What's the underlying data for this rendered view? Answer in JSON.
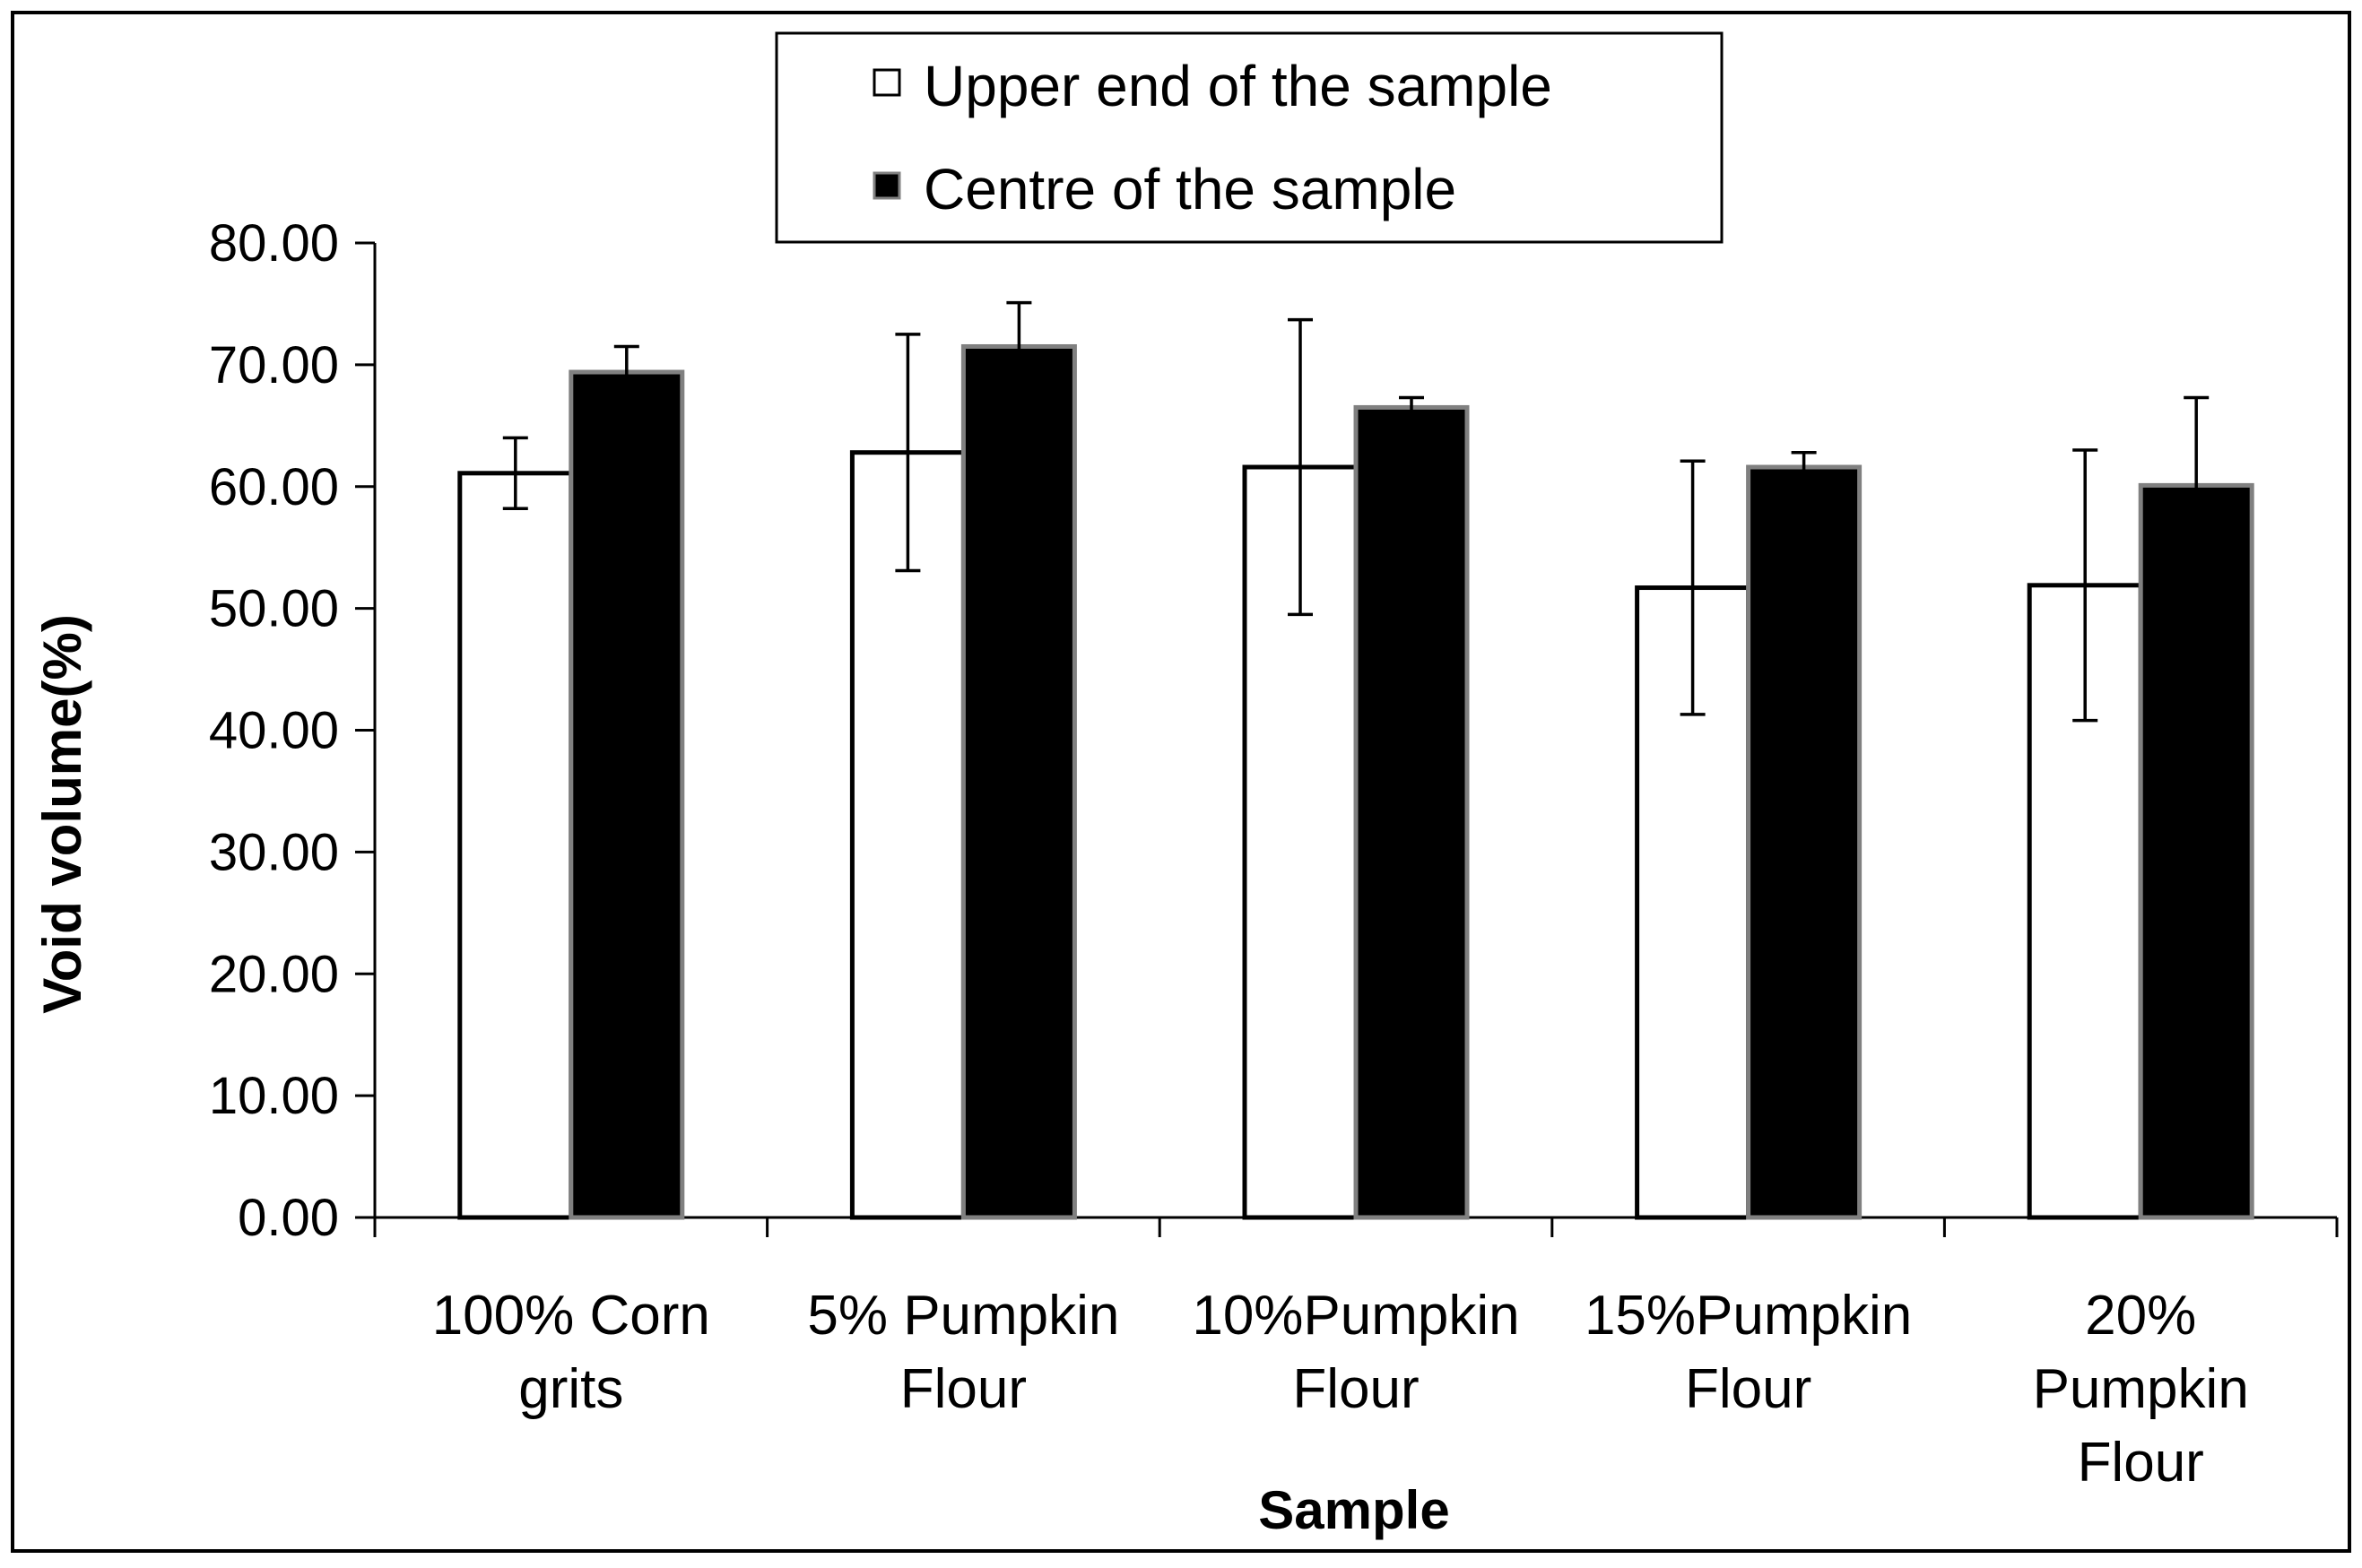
{
  "chart_data": {
    "type": "bar",
    "xlabel": "Sample",
    "ylabel": "Void volume(%)",
    "ylim": [
      0,
      80
    ],
    "ytick_step": 10,
    "ytick_labels": [
      "0.00",
      "10.00",
      "20.00",
      "30.00",
      "40.00",
      "50.00",
      "60.00",
      "70.00",
      "80.00"
    ],
    "grid": false,
    "legend_position": "top-center",
    "categories": [
      [
        "100% Corn",
        "grits"
      ],
      [
        "5% Pumpkin",
        "Flour"
      ],
      [
        "10%Pumpkin",
        "Flour"
      ],
      [
        "15%Pumpkin",
        "Flour"
      ],
      [
        "20%",
        "Pumpkin",
        "Flour"
      ]
    ],
    "series": [
      {
        "name": "Upper end of the sample",
        "fill": "#ffffff",
        "stroke": "#000000",
        "values": [
          61.1,
          62.8,
          61.6,
          51.7,
          51.9
        ],
        "errors": [
          2.9,
          9.7,
          12.1,
          10.4,
          11.1
        ]
      },
      {
        "name": "Centre of the sample",
        "fill": "#000000",
        "stroke": "#808080",
        "values": [
          69.4,
          71.5,
          66.5,
          61.6,
          60.1
        ],
        "errors": [
          2.1,
          3.6,
          0.8,
          1.2,
          7.2
        ]
      }
    ]
  }
}
